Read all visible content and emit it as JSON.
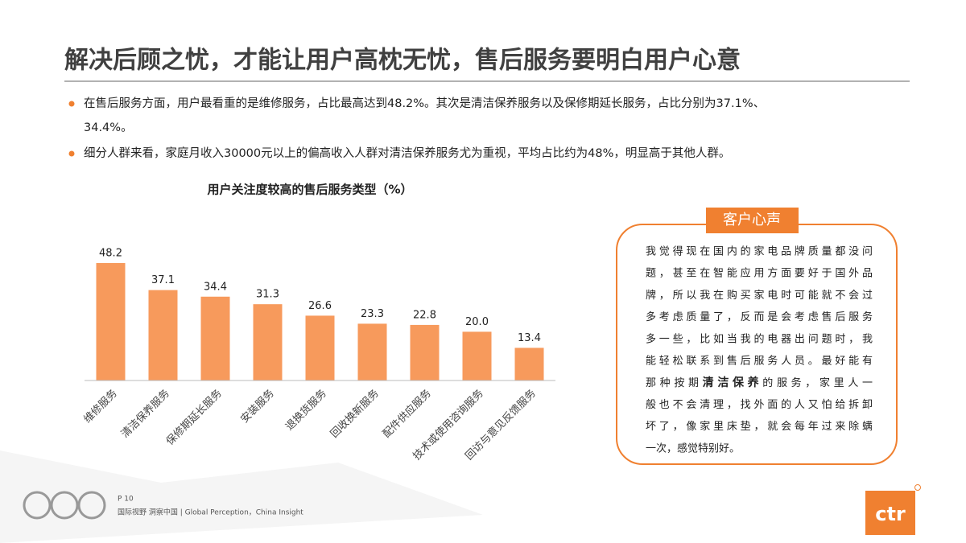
{
  "header": {
    "title": "解决后顾之忧，才能让用户高枕无忧，售后服务要明白用户心意"
  },
  "bullets": [
    {
      "lines": [
        "在售后服务方面，用户最看重的是维修服务，占比最高达到48.2%。其次是清洁保养服务以及保修期延长服务，占比分别为37.1%、",
        "34.4%。"
      ]
    },
    {
      "lines": [
        "细分人群来看，家庭月收入30000元以上的偏高收入人群对清洁保养服务尤为重视，平均占比约为48%，明显高于其他人群。"
      ]
    }
  ],
  "chart_data": {
    "type": "bar",
    "title": "用户关注度较高的售后服务类型（%）",
    "categories": [
      "维修服务",
      "清洁保养服务",
      "保修期延长服务",
      "安装服务",
      "退换货服务",
      "回收换新服务",
      "配件供应服务",
      "技术或使用咨询服务",
      "回访与意见反馈服务"
    ],
    "values": [
      48.2,
      37.1,
      34.4,
      31.3,
      26.6,
      23.3,
      22.8,
      20.0,
      13.4
    ],
    "value_labels": [
      "48.2",
      "37.1",
      "34.4",
      "31.3",
      "26.6",
      "23.3",
      "22.8",
      "20.0",
      "13.4"
    ],
    "color": "#f79a5c"
  },
  "quote": {
    "badge": "客户心声",
    "lines": [
      "我觉得现在国内的家电品牌质量都没问",
      "题，甚至在智能应用方面要好于国外品",
      "牌，所以我在购买家电时可能就不会过",
      "多考虑质量了，反而是会考虑售后服务",
      "多一些，比如当我的电器出问题时，我",
      "能轻松联系到售后服务人员。最好能有",
      [
        "那种按期",
        "清洁保养",
        "的服务，家里人一"
      ],
      "般也不会清理，找外面的人又怕给拆卸",
      "坏了，像家里床垫，就会每年过来除螨",
      "一次，感觉特别好。"
    ]
  },
  "footer": {
    "page": "P 10",
    "slogan": "国际视野 洞察中国 | Global Perception，China Insight",
    "logo": "ctr"
  }
}
